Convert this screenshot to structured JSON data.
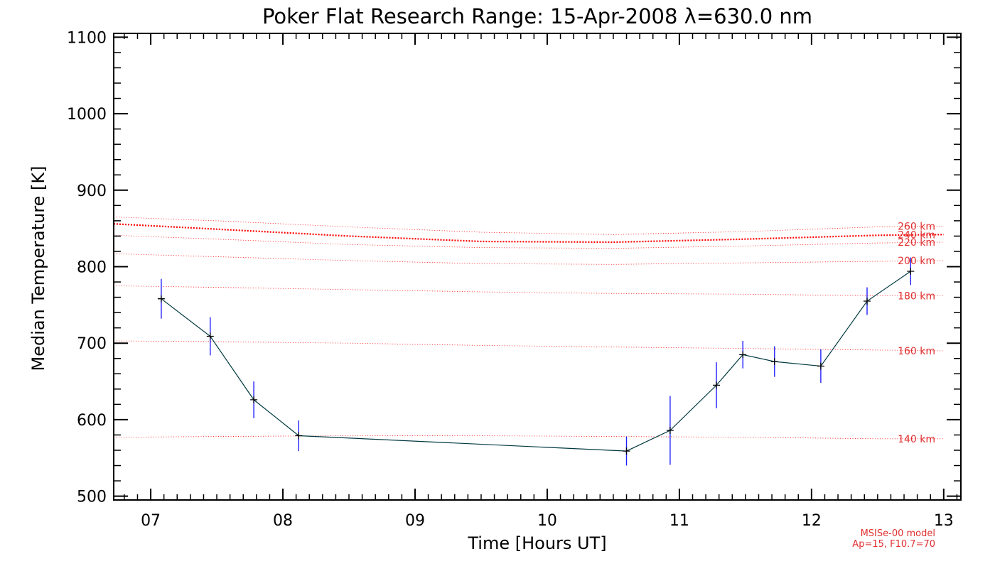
{
  "chart_data": {
    "type": "line",
    "title": "Poker Flat Research Range: 15-Apr-2008 λ=630.0 nm",
    "xlabel": "Time [Hours UT]",
    "ylabel": "Median Temperature [K]",
    "xlim": [
      6.72,
      13.13
    ],
    "ylim": [
      495,
      1105
    ],
    "xticks": [
      7,
      8,
      9,
      10,
      11,
      12,
      13
    ],
    "xtick_labels": [
      "07",
      "08",
      "09",
      "10",
      "11",
      "12",
      "13"
    ],
    "yticks": [
      500,
      600,
      700,
      800,
      900,
      1000,
      1100
    ],
    "ytick_labels": [
      "500",
      "600",
      "700",
      "800",
      "900",
      "1000",
      "1100"
    ],
    "grid": false,
    "colors": {
      "measurement": "#003840",
      "error_bar": "#2020ff",
      "model": "#ff0000",
      "model_label": "#e03030",
      "axes": "#000000"
    },
    "series": [
      {
        "x": [
          7.08,
          7.45,
          7.78,
          8.12,
          10.6,
          10.93,
          11.28,
          11.48,
          11.72,
          12.07,
          12.42,
          12.75
        ],
        "values": [
          758,
          709,
          626,
          579,
          559,
          586,
          645,
          685,
          676,
          670,
          755,
          794
        ],
        "error": [
          26,
          25,
          24,
          20,
          19,
          45,
          30,
          18,
          20,
          22,
          18,
          18
        ]
      }
    ],
    "model_curves": [
      {
        "label": "260 km",
        "x": [
          6.72,
          7.5,
          8.5,
          9.5,
          10.5,
          11.5,
          12.5,
          13.0
        ],
        "y": [
          865,
          860,
          852,
          845,
          842,
          846,
          852,
          853
        ]
      },
      {
        "label": "240 km",
        "x": [
          6.72,
          7.5,
          8.5,
          9.5,
          10.5,
          11.5,
          12.5,
          13.0
        ],
        "y": [
          856,
          849,
          840,
          833,
          832,
          836,
          841,
          842
        ]
      },
      {
        "label": "220 km",
        "x": [
          6.72,
          7.5,
          8.5,
          9.5,
          10.5,
          11.5,
          12.5,
          13.0
        ],
        "y": [
          841,
          836,
          829,
          825,
          824,
          827,
          831,
          832
        ]
      },
      {
        "label": "200 km",
        "x": [
          6.72,
          7.5,
          8.5,
          9.5,
          10.5,
          11.5,
          12.5,
          13.0
        ],
        "y": [
          817,
          813,
          808,
          804,
          803,
          805,
          807,
          808
        ]
      },
      {
        "label": "180 km",
        "x": [
          6.72,
          7.5,
          8.5,
          9.5,
          10.5,
          11.5,
          12.5,
          13.0
        ],
        "y": [
          775,
          773,
          770,
          767,
          765,
          764,
          762,
          762
        ]
      },
      {
        "label": "160 km",
        "x": [
          6.72,
          7.5,
          8.5,
          9.5,
          10.5,
          11.5,
          12.5,
          13.0
        ],
        "y": [
          703,
          702,
          700,
          697,
          695,
          693,
          691,
          690
        ]
      },
      {
        "label": "140 km",
        "x": [
          6.72,
          7.5,
          8.5,
          9.5,
          10.5,
          11.5,
          12.5,
          13.0
        ],
        "y": [
          577,
          578,
          579,
          579,
          578,
          577,
          575,
          575
        ]
      }
    ],
    "emphasized_model_curve": "240 km",
    "annotation": [
      "MSISe-00 model",
      "Ap=15, F10.7=70"
    ]
  }
}
